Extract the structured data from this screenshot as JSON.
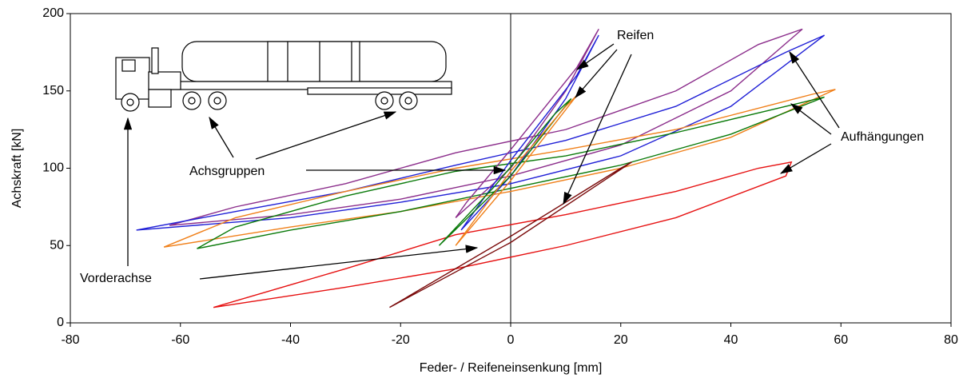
{
  "chart_data": {
    "type": "line",
    "xlabel": "Feder- / Reifeneinsenkung [mm]",
    "ylabel": "Achskraft [kN]",
    "xlim": [
      -80,
      80
    ],
    "xticks": [
      -80,
      -60,
      -40,
      -20,
      0,
      20,
      40,
      60,
      80
    ],
    "ylim": [
      0,
      200
    ],
    "yticks": [
      0,
      50,
      100,
      150,
      200
    ],
    "series": [
      {
        "color": "#8b2d8b",
        "x": [
          -62,
          -40,
          -20,
          0,
          20,
          40,
          53,
          45,
          30,
          10,
          -10,
          -30,
          -50,
          -62
        ],
        "values": [
          63,
          70,
          80,
          95,
          115,
          150,
          190,
          180,
          150,
          125,
          110,
          90,
          75,
          63
        ]
      },
      {
        "color": "#1f1fd6",
        "x": [
          -68,
          -40,
          -20,
          0,
          20,
          40,
          57,
          50,
          30,
          10,
          -10,
          -30,
          -50,
          -68
        ],
        "values": [
          60,
          68,
          78,
          90,
          108,
          140,
          186,
          175,
          140,
          118,
          102,
          85,
          72,
          60
        ]
      },
      {
        "color": "#f0801a",
        "x": [
          -63,
          -40,
          -20,
          0,
          20,
          40,
          59,
          55,
          30,
          10,
          -10,
          -30,
          -50,
          -63
        ],
        "values": [
          49,
          62,
          72,
          85,
          100,
          120,
          151,
          148,
          125,
          112,
          100,
          85,
          68,
          49
        ]
      },
      {
        "color": "#0a7a0a",
        "x": [
          -57,
          -40,
          -20,
          0,
          20,
          40,
          57,
          50,
          30,
          10,
          -10,
          -30,
          -50,
          -57
        ],
        "values": [
          48,
          60,
          72,
          87,
          102,
          122,
          146,
          140,
          123,
          108,
          98,
          82,
          62,
          48
        ]
      },
      {
        "color": "#e61010",
        "x": [
          -54,
          -30,
          -10,
          10,
          30,
          50,
          51,
          45,
          30,
          10,
          -10,
          -30,
          -54
        ],
        "values": [
          10,
          23,
          35,
          50,
          68,
          95,
          104,
          100,
          85,
          70,
          57,
          35,
          10
        ]
      },
      {
        "color": "#8b2d8b",
        "x": [
          -10,
          0,
          10,
          16,
          12,
          0,
          -8,
          -10
        ],
        "values": [
          68,
          100,
          150,
          190,
          165,
          112,
          78,
          68
        ]
      },
      {
        "color": "#1f1fd6",
        "x": [
          -9,
          0,
          10,
          16,
          12,
          0,
          -7,
          -9
        ],
        "values": [
          60,
          95,
          145,
          186,
          160,
          105,
          70,
          60
        ]
      },
      {
        "color": "#0a7a0a",
        "x": [
          -13,
          0,
          11,
          8,
          -3,
          -13
        ],
        "values": [
          50,
          95,
          145,
          135,
          88,
          50
        ]
      },
      {
        "color": "#f0801a",
        "x": [
          -10,
          0,
          12,
          10,
          0,
          -10
        ],
        "values": [
          50,
          92,
          147,
          140,
          98,
          50
        ]
      },
      {
        "color": "#7a0a0a",
        "x": [
          -22,
          0,
          22,
          20,
          0,
          -22
        ],
        "values": [
          10,
          52,
          104,
          100,
          56,
          10
        ]
      }
    ],
    "annotations": [
      {
        "text": "Reifen"
      },
      {
        "text": "Aufhängungen"
      },
      {
        "text": "Achsgruppen"
      },
      {
        "text": "Vorderachse"
      }
    ]
  }
}
